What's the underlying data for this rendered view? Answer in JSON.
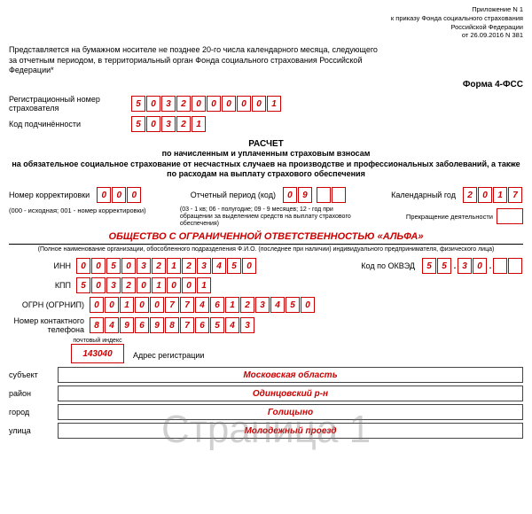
{
  "header": {
    "line1": "Приложение N 1",
    "line2": "к приказу Фонда социального страхования",
    "line3": "Российской Федерации",
    "line4": "от 26.09.2016 N 381"
  },
  "intro": "Представляется на бумажном носителе не позднее 20-го числа календарного месяца, следующего за отчетным периодом, в территориальный орган Фонда социального страхования Российской Федерации*",
  "form_name": "Форма 4-ФСС",
  "reg_label": "Регистрационный номер страхователя",
  "reg_digits": [
    "5",
    "0",
    "3",
    "2",
    "0",
    "0",
    "0",
    "0",
    "0",
    "1"
  ],
  "sub_label": "Код подчинённости",
  "sub_digits": [
    "5",
    "0",
    "3",
    "2",
    "1"
  ],
  "title1": "РАСЧЕТ",
  "title2": "по начисленным и уплаченным страховым взносам",
  "title3": "на обязательное социальное страхование от несчастных случаев на производстве и профессиональных заболеваний, а также по расходам на выплату страхового обеспечения",
  "corr_label": "Номер корректировки",
  "corr_digits": [
    "0",
    "0",
    "0"
  ],
  "period_label": "Отчетный период (код)",
  "period_digits": [
    "0",
    "9"
  ],
  "period_extra": [
    "",
    ""
  ],
  "period_note": "(03 - 1 кв; 06 - полугодие; 09 - 9 месяцев; 12 - год при обращении за выделением средств на выплату страхового обеспечения)",
  "corr_note": "(000 - исходная; 001 - номер корректировки)",
  "year_label": "Календарный год",
  "year_digits": [
    "2",
    "0",
    "1",
    "7"
  ],
  "term_label": "Прекращение деятельности",
  "org_name": "ОБЩЕСТВО С ОГРАНИЧЕННОЙ ОТВЕТСТВЕННОСТЬЮ «АЛЬФА»",
  "org_caption": "(Полное наименование организации, обособленного подразделения Ф.И.О. (последнее при наличии) индивидуального предпринимателя, физического лица)",
  "inn_label": "ИНН",
  "inn_digits": [
    "0",
    "0",
    "5",
    "0",
    "3",
    "2",
    "1",
    "2",
    "3",
    "4",
    "5",
    "0"
  ],
  "okved_label": "Код по ОКВЭД",
  "okved_g1": [
    "5",
    "5"
  ],
  "okved_g2": [
    "3",
    "0"
  ],
  "okved_g3": [
    "",
    ""
  ],
  "kpp_label": "КПП",
  "kpp_digits": [
    "5",
    "0",
    "3",
    "2",
    "0",
    "1",
    "0",
    "0",
    "1"
  ],
  "ogrn_label": "ОГРН (ОГРНИП)",
  "ogrn_digits": [
    "0",
    "0",
    "1",
    "0",
    "0",
    "7",
    "7",
    "4",
    "6",
    "1",
    "2",
    "3",
    "4",
    "5",
    "0"
  ],
  "phone_label": "Номер контактного телефона",
  "phone_digits": [
    "8",
    "4",
    "9",
    "6",
    "9",
    "8",
    "7",
    "6",
    "5",
    "4",
    "3"
  ],
  "postal_caption": "почтовый индекс",
  "postal": "143040",
  "addr_label": "Адрес регистрации",
  "subject_label": "субъект",
  "subject_val": "Московская область",
  "district_label": "район",
  "district_val": "Одинцовский р-н",
  "city_label": "город",
  "city_val": "Голицыно",
  "street_label": "улица",
  "street_val": "Молодежный проезд",
  "watermark": "Страница 1",
  "colors": {
    "accent": "#c00",
    "text": "#000"
  }
}
